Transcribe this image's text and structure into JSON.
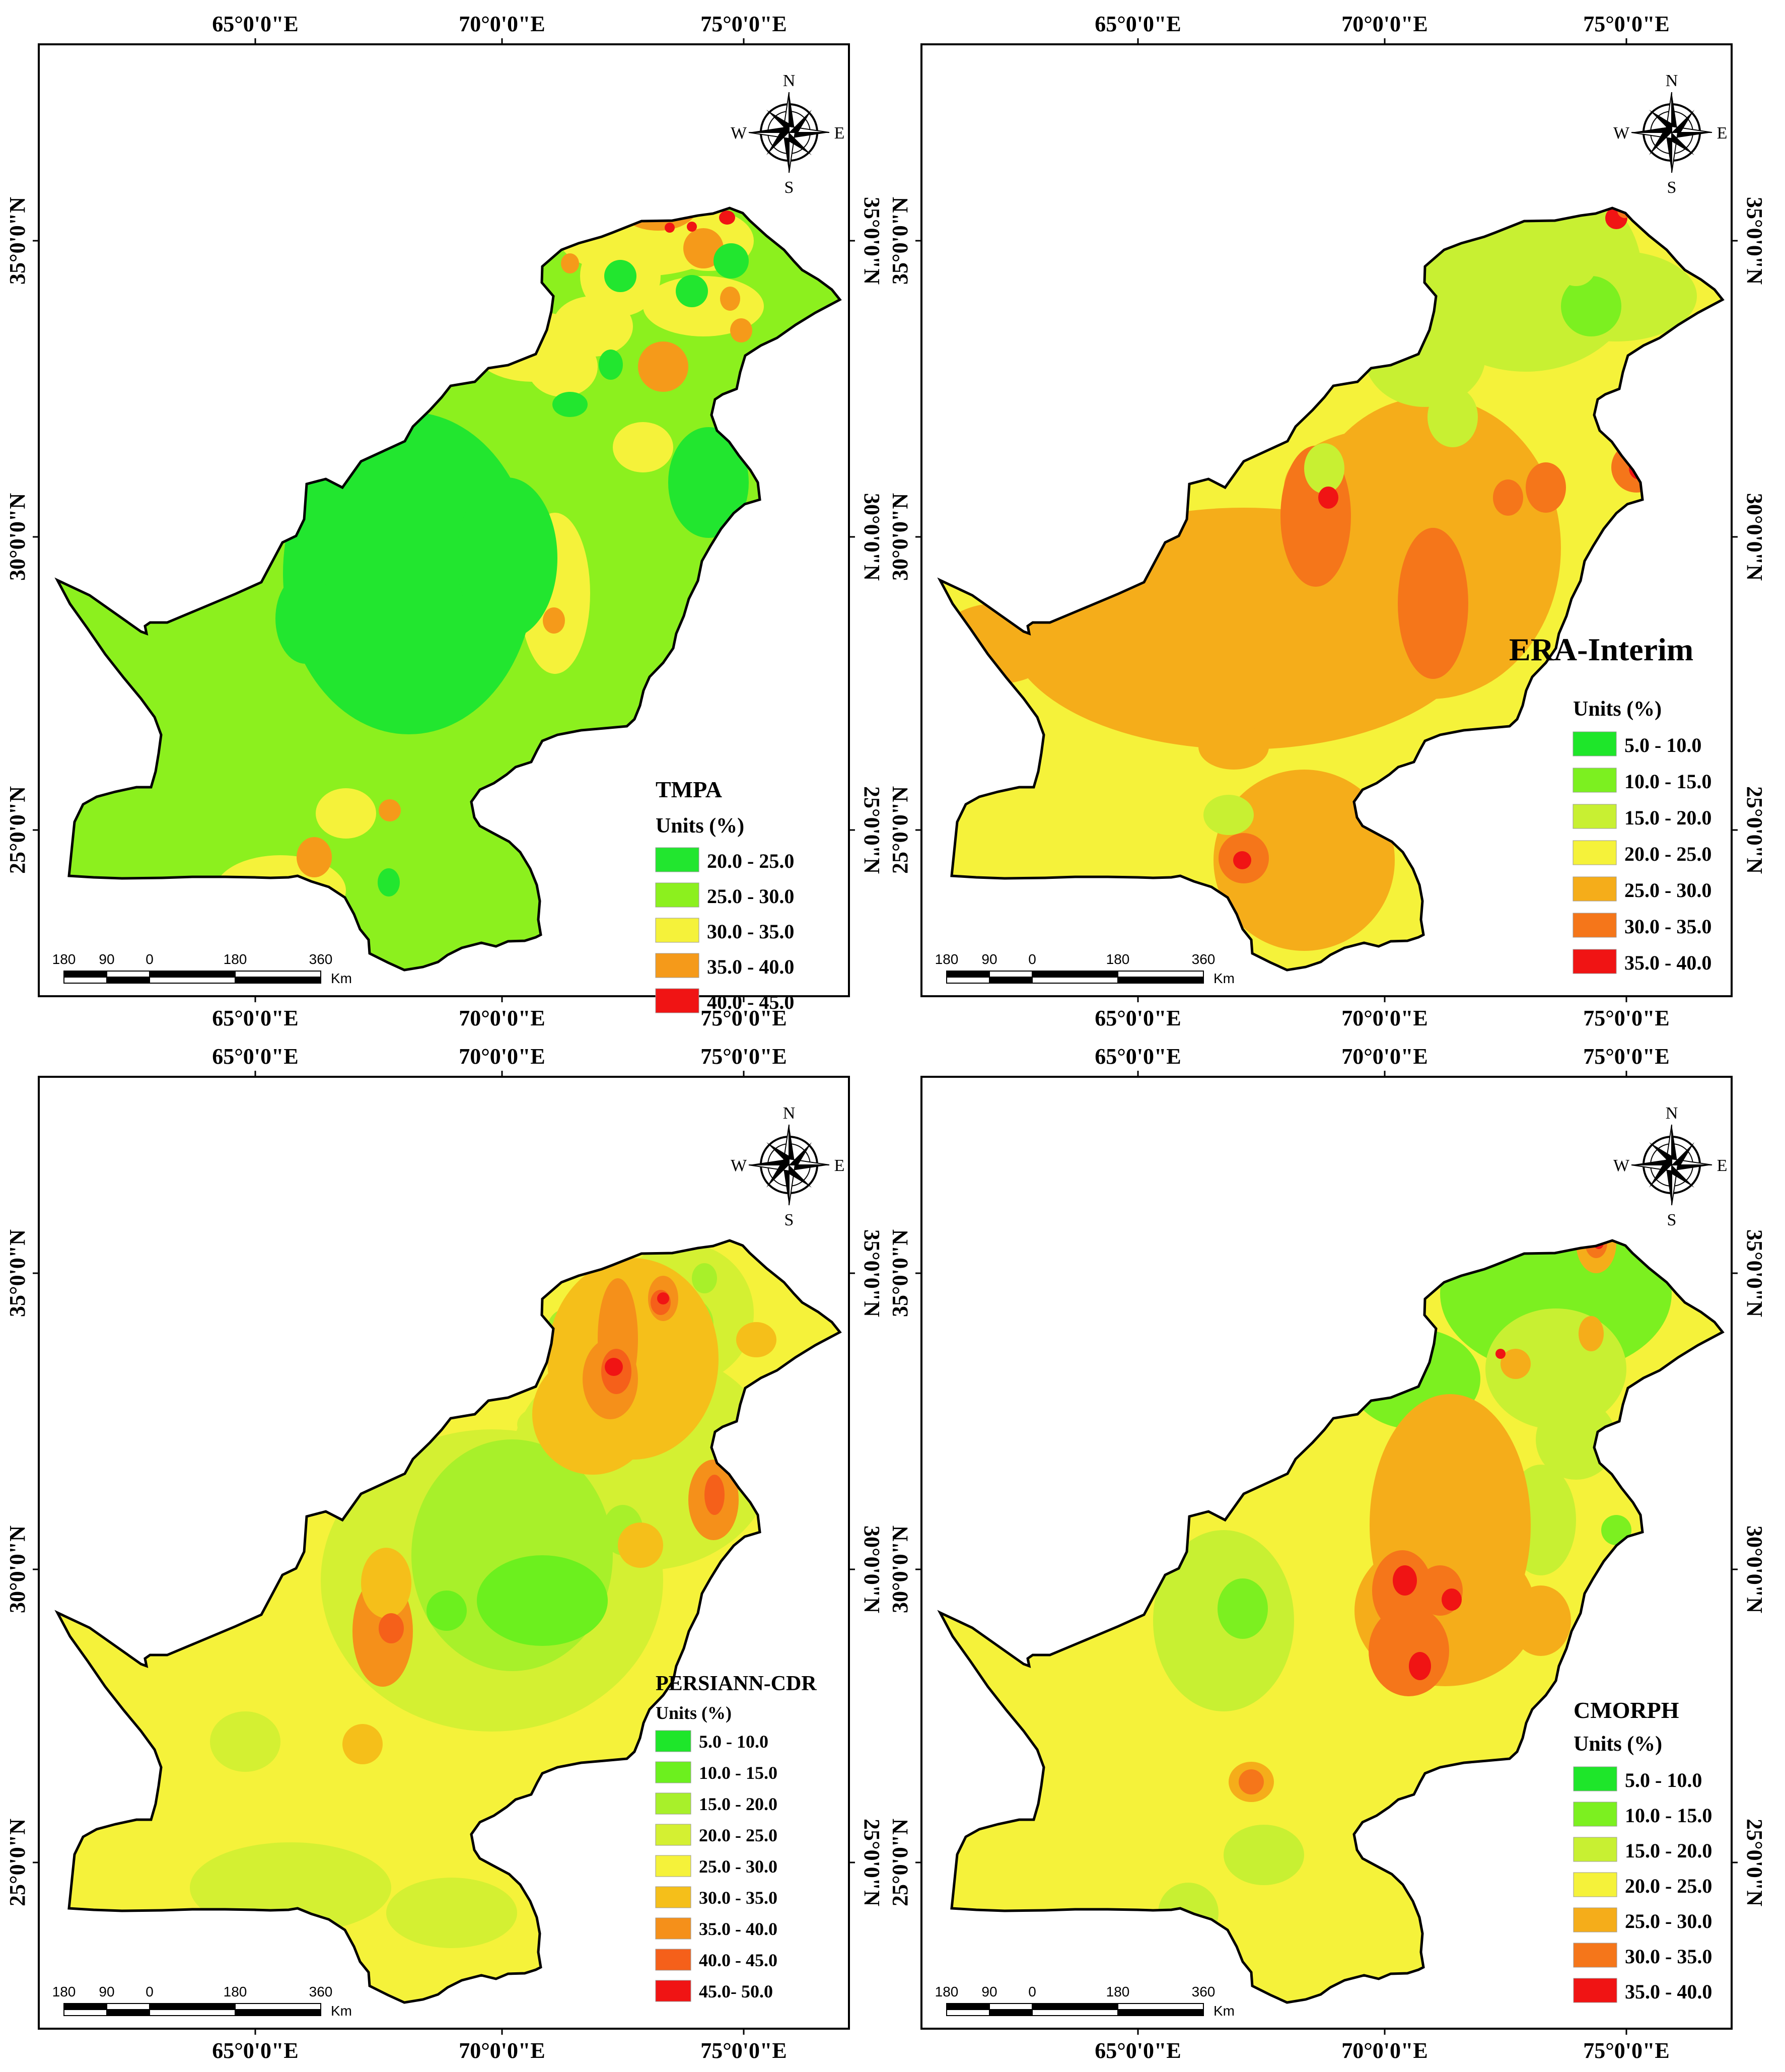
{
  "figure": {
    "lon_ticks": [
      "65°0'0\"E",
      "70°0'0\"E",
      "75°0'0\"E"
    ],
    "lat_ticks": [
      "35°0'0\"N",
      "30°0'0\"N",
      "25°0'0\"N"
    ],
    "scale_bar": {
      "ticks": [
        "180",
        "90",
        "0",
        "180",
        "360"
      ],
      "unit": "Km"
    },
    "compass": {
      "n": "N",
      "s": "S",
      "e": "E",
      "w": "W"
    },
    "boundary_color": "#000000"
  },
  "panels": [
    {
      "id": "tmpa",
      "title": "TMPA",
      "unit": "Units (%)",
      "legend": [
        {
          "label": "20.0 - 25.0",
          "color": "#22e62f"
        },
        {
          "label": "25.0 - 30.0",
          "color": "#8cf01e"
        },
        {
          "label": "30.0 - 35.0",
          "color": "#f5f23a"
        },
        {
          "label": "35.0 - 40.0",
          "color": "#f59a1a"
        },
        {
          "label": "40.0 - 45.0",
          "color": "#f01414"
        }
      ]
    },
    {
      "id": "era",
      "title": "ERA-Interim",
      "unit": "Units (%)",
      "legend": [
        {
          "label": "5.0 - 10.0",
          "color": "#1ee62a"
        },
        {
          "label": "10.0 - 15.0",
          "color": "#7cf020"
        },
        {
          "label": "15.0 - 20.0",
          "color": "#c8f032"
        },
        {
          "label": "20.0 - 25.0",
          "color": "#f5f23a"
        },
        {
          "label": "25.0 - 30.0",
          "color": "#f5ad1a"
        },
        {
          "label": "30.0 - 35.0",
          "color": "#f5761a"
        },
        {
          "label": "35.0 - 40.0",
          "color": "#f01414"
        }
      ]
    },
    {
      "id": "persiann",
      "title": "PERSIANN-CDR",
      "unit": "Units (%)",
      "legend": [
        {
          "label": "5.0 - 10.0",
          "color": "#1ee62a"
        },
        {
          "label": "10.0 - 15.0",
          "color": "#6cf01e"
        },
        {
          "label": "15.0 - 20.0",
          "color": "#a8f02a"
        },
        {
          "label": "20.0 - 25.0",
          "color": "#d4f032"
        },
        {
          "label": "25.0 - 30.0",
          "color": "#f5f23a"
        },
        {
          "label": "30.0 - 35.0",
          "color": "#f5bf1a"
        },
        {
          "label": "35.0 - 40.0",
          "color": "#f5901a"
        },
        {
          "label": "40.0 - 45.0",
          "color": "#f5601a"
        },
        {
          "label": "45.0- 50.0",
          "color": "#f01414"
        }
      ]
    },
    {
      "id": "cmorph",
      "title": "CMORPH",
      "unit": "Units (%)",
      "legend": [
        {
          "label": "5.0 - 10.0",
          "color": "#1ee62a"
        },
        {
          "label": "10.0 - 15.0",
          "color": "#7cf020"
        },
        {
          "label": "15.0 - 20.0",
          "color": "#c8f032"
        },
        {
          "label": "20.0 - 25.0",
          "color": "#f5f23a"
        },
        {
          "label": "25.0 - 30.0",
          "color": "#f5ad1a"
        },
        {
          "label": "30.0 - 35.0",
          "color": "#f5761a"
        },
        {
          "label": "35.0 - 40.0",
          "color": "#f01414"
        }
      ]
    }
  ]
}
